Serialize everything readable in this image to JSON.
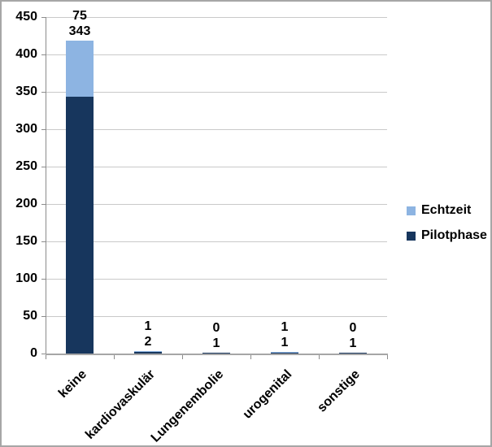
{
  "chart_data": {
    "type": "bar",
    "stacked": true,
    "title": "",
    "categories": [
      "keine",
      "kardiovaskulär",
      "Lungenembolie",
      "urogenital",
      "sonstige"
    ],
    "series": [
      {
        "name": "Echtzeit",
        "color": "#8DB4E2",
        "values": [
          75,
          1,
          0,
          1,
          0
        ]
      },
      {
        "name": "Pilotphase",
        "color": "#17365D",
        "values": [
          343,
          2,
          1,
          1,
          1
        ]
      }
    ],
    "ylim": [
      0,
      450
    ],
    "yticks": [
      0,
      50,
      100,
      150,
      200,
      250,
      300,
      350,
      400,
      450
    ],
    "grid": true,
    "legend_position": "right",
    "data_labels_order": [
      "Echtzeit",
      "Pilotphase"
    ]
  },
  "colors": {
    "echtzeit": "#8DB4E2",
    "pilotphase": "#17365D",
    "gridline": "#C9C9C9",
    "axis": "#A6A6A6",
    "frame_border": "#A6A6A6",
    "text": "#000000"
  }
}
